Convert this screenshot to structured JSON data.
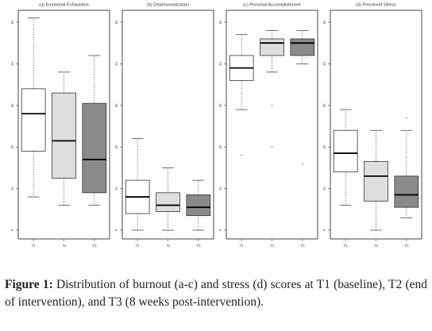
{
  "chart_data": [
    {
      "type": "boxplot",
      "title": "(a) Emotional Exhaustion",
      "categories": [
        "T1",
        "T2",
        "T3"
      ],
      "ylim": [
        0,
        50
      ],
      "yticks": [
        "0",
        "10",
        "20",
        "30",
        "40",
        "50"
      ],
      "boxes": [
        {
          "min": 8,
          "q1": 19,
          "median": 28,
          "q3": 34,
          "max": 51,
          "outliers": []
        },
        {
          "min": 6,
          "q1": 12.5,
          "median": 21.5,
          "q3": 33,
          "max": 38,
          "outliers": []
        },
        {
          "min": 6,
          "q1": 9,
          "median": 17,
          "q3": 30.5,
          "max": 42,
          "outliers": []
        }
      ],
      "fills": [
        "#ffffff",
        "#dedede",
        "#8a8a8a"
      ]
    },
    {
      "type": "boxplot",
      "title": "(b) Depersonalization",
      "categories": [
        "T1",
        "T2",
        "T3"
      ],
      "ylim": [
        0,
        50
      ],
      "yticks": [
        "0",
        "10",
        "20",
        "30",
        "40",
        "50"
      ],
      "boxes": [
        {
          "min": 0,
          "q1": 4,
          "median": 8,
          "q3": 12,
          "max": 22,
          "outliers": []
        },
        {
          "min": 0,
          "q1": 4.5,
          "median": 6,
          "q3": 9,
          "max": 15,
          "outliers": []
        },
        {
          "min": 0,
          "q1": 3.5,
          "median": 5.5,
          "q3": 8.5,
          "max": 12,
          "outliers": []
        }
      ],
      "fills": [
        "#ffffff",
        "#dedede",
        "#8a8a8a"
      ]
    },
    {
      "type": "boxplot",
      "title": "(c) Personal Accomplishment",
      "categories": [
        "T1",
        "T2",
        "T3"
      ],
      "ylim": [
        0,
        50
      ],
      "yticks": [
        "0",
        "10",
        "20",
        "30",
        "40",
        "50"
      ],
      "boxes": [
        {
          "min": 29,
          "q1": 36,
          "median": 39,
          "q3": 42,
          "max": 47,
          "outliers": [
            18
          ]
        },
        {
          "min": 38,
          "q1": 42,
          "median": 45,
          "q3": 46,
          "max": 48,
          "outliers": [
            30,
            20
          ]
        },
        {
          "min": 40,
          "q1": 42,
          "median": 45,
          "q3": 46,
          "max": 48,
          "outliers": [
            16
          ]
        }
      ],
      "fills": [
        "#ffffff",
        "#dedede",
        "#8a8a8a"
      ]
    },
    {
      "type": "boxplot",
      "title": "(d) Perceived Stress",
      "categories": [
        "T1",
        "T2",
        "T3"
      ],
      "ylim": [
        0,
        50
      ],
      "yticks": [
        "0",
        "10",
        "20",
        "30",
        "40",
        "50"
      ],
      "boxes": [
        {
          "min": 6,
          "q1": 14,
          "median": 18.5,
          "q3": 24,
          "max": 29,
          "outliers": []
        },
        {
          "min": 0,
          "q1": 7,
          "median": 13,
          "q3": 16.5,
          "max": 24,
          "outliers": []
        },
        {
          "min": 3,
          "q1": 5.5,
          "median": 8.5,
          "q3": 13,
          "max": 24,
          "outliers": [
            27
          ]
        }
      ],
      "fills": [
        "#ffffff",
        "#dedede",
        "#8a8a8a"
      ]
    }
  ],
  "caption": {
    "label": "Figure 1:",
    "text": " Distribution of burnout (a-c) and stress (d) scores at T1 (baseline), T2 (end of intervention), and T3 (8 weeks post-intervention)."
  }
}
